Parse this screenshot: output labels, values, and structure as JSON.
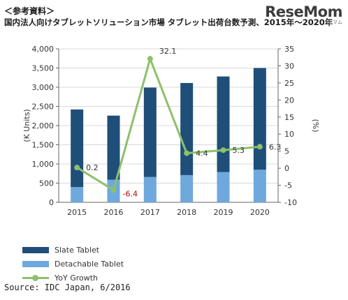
{
  "header": {
    "note": "＜参考資料＞",
    "title": "国内法人向けタブレットソリューション市場 タブレット出荷台数予測、2015年～2020年"
  },
  "logo": {
    "name": "ReseMom",
    "sub": "リセマム"
  },
  "source": "Source: IDC Japan, 6/2016",
  "colors": {
    "slate": "#1f4e79",
    "detachable": "#6fa8dc",
    "yoy": "#8dc06b",
    "neg_label": "#c00000"
  },
  "chart_data": {
    "type": "bar",
    "categories": [
      "2015",
      "2016",
      "2017",
      "2018",
      "2019",
      "2020"
    ],
    "series": [
      {
        "name": "Slate Tablet",
        "type": "bar",
        "stacked": true,
        "axis": "left",
        "values": [
          2020,
          1670,
          2330,
          2400,
          2490,
          2650
        ]
      },
      {
        "name": "Detachable Tablet",
        "type": "bar",
        "stacked": true,
        "axis": "left",
        "values": [
          400,
          590,
          660,
          710,
          790,
          850
        ]
      },
      {
        "name": "YoY Growth",
        "type": "line",
        "axis": "right",
        "values": [
          0.2,
          -6.4,
          32.1,
          4.4,
          5.3,
          6.3
        ]
      }
    ],
    "data_labels": [
      "0.2",
      "-6.4",
      "32.1",
      "4.4",
      "5.3",
      "6.3"
    ],
    "ylabel": "(K Units)",
    "y2label": "(%)",
    "ylim": [
      0,
      4000
    ],
    "y2lim": [
      -10,
      35
    ],
    "yticks": [
      "0",
      "500",
      "1,000",
      "1,500",
      "2,000",
      "2,500",
      "3,000",
      "3,500",
      "4,000"
    ],
    "y2ticks": [
      "-10",
      "-5",
      "0",
      "5",
      "10",
      "15",
      "20",
      "25",
      "30",
      "35"
    ],
    "grid": true,
    "legend_position": "bottom-left"
  }
}
